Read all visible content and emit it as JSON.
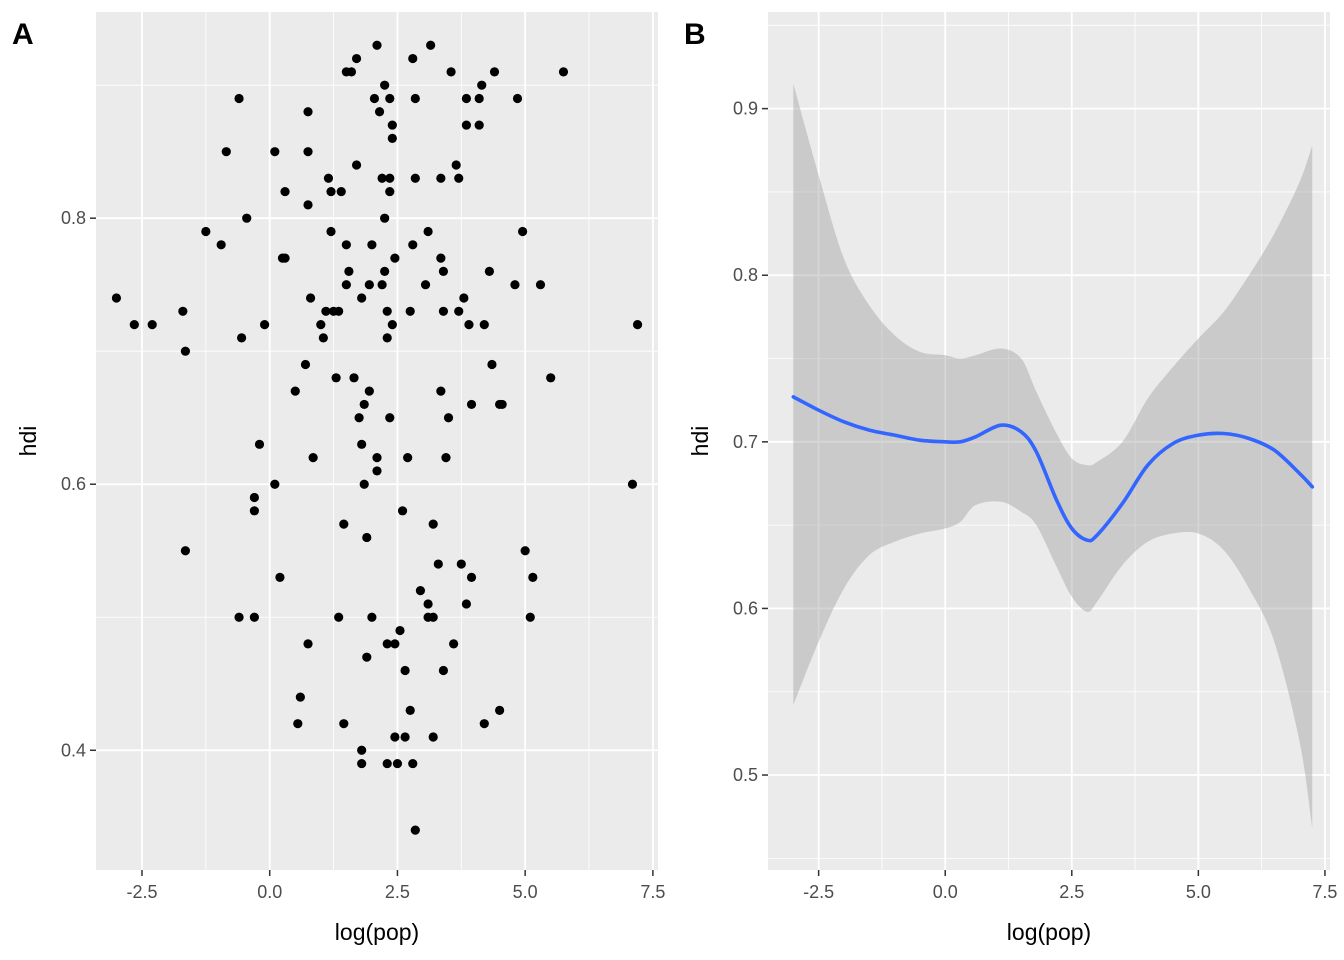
{
  "chart_data": [
    {
      "type": "scatter",
      "panel_tag": "A",
      "xlabel": "log(pop)",
      "ylabel": "hdi",
      "xlim": [
        -3.4,
        7.6
      ],
      "ylim": [
        0.31,
        0.955
      ],
      "x_ticks": [
        -2.5,
        0,
        2.5,
        5,
        7.5
      ],
      "x_tick_labels": [
        "-2.5",
        "0.0",
        "2.5",
        "5.0",
        "7.5"
      ],
      "y_ticks": [
        0.4,
        0.6,
        0.8
      ],
      "y_tick_labels": [
        "0.4",
        "0.6",
        "0.8"
      ],
      "grid": true,
      "background": "#ebebeb",
      "point_color": "#000000",
      "points": [
        [
          -3.0,
          0.74
        ],
        [
          -2.65,
          0.72
        ],
        [
          -2.3,
          0.72
        ],
        [
          -1.7,
          0.73
        ],
        [
          -1.65,
          0.7
        ],
        [
          -1.65,
          0.55
        ],
        [
          -1.25,
          0.79
        ],
        [
          -0.95,
          0.78
        ],
        [
          -0.85,
          0.85
        ],
        [
          -0.6,
          0.89
        ],
        [
          -0.55,
          0.71
        ],
        [
          -0.45,
          0.8
        ],
        [
          -0.6,
          0.5
        ],
        [
          -0.3,
          0.5
        ],
        [
          -0.3,
          0.58
        ],
        [
          -0.3,
          0.59
        ],
        [
          -0.2,
          0.63
        ],
        [
          -0.1,
          0.72
        ],
        [
          0.1,
          0.85
        ],
        [
          0.1,
          0.6
        ],
        [
          0.2,
          0.53
        ],
        [
          0.25,
          0.77
        ],
        [
          0.3,
          0.77
        ],
        [
          0.3,
          0.82
        ],
        [
          0.5,
          0.67
        ],
        [
          0.55,
          0.42
        ],
        [
          0.6,
          0.44
        ],
        [
          0.7,
          0.69
        ],
        [
          0.75,
          0.88
        ],
        [
          0.75,
          0.85
        ],
        [
          0.75,
          0.81
        ],
        [
          0.8,
          0.74
        ],
        [
          0.85,
          0.62
        ],
        [
          0.75,
          0.48
        ],
        [
          1.0,
          0.72
        ],
        [
          1.05,
          0.71
        ],
        [
          1.1,
          0.73
        ],
        [
          1.15,
          0.83
        ],
        [
          1.2,
          0.82
        ],
        [
          1.2,
          0.79
        ],
        [
          1.25,
          0.73
        ],
        [
          1.3,
          0.68
        ],
        [
          1.35,
          0.73
        ],
        [
          1.4,
          0.82
        ],
        [
          1.35,
          0.5
        ],
        [
          1.45,
          0.42
        ],
        [
          1.45,
          0.57
        ],
        [
          1.5,
          0.91
        ],
        [
          1.5,
          0.78
        ],
        [
          1.5,
          0.75
        ],
        [
          1.55,
          0.76
        ],
        [
          1.6,
          0.91
        ],
        [
          1.65,
          0.68
        ],
        [
          1.7,
          0.84
        ],
        [
          1.7,
          0.92
        ],
        [
          1.75,
          0.65
        ],
        [
          1.8,
          0.63
        ],
        [
          1.8,
          0.74
        ],
        [
          1.85,
          0.66
        ],
        [
          1.85,
          0.6
        ],
        [
          1.8,
          0.39
        ],
        [
          1.8,
          0.4
        ],
        [
          1.9,
          0.56
        ],
        [
          1.9,
          0.47
        ],
        [
          1.95,
          0.67
        ],
        [
          1.95,
          0.75
        ],
        [
          2.0,
          0.78
        ],
        [
          2.0,
          0.5
        ],
        [
          2.05,
          0.89
        ],
        [
          2.1,
          0.93
        ],
        [
          2.1,
          0.62
        ],
        [
          2.1,
          0.61
        ],
        [
          2.15,
          0.88
        ],
        [
          2.2,
          0.83
        ],
        [
          2.2,
          0.75
        ],
        [
          2.25,
          0.8
        ],
        [
          2.25,
          0.76
        ],
        [
          2.25,
          0.9
        ],
        [
          2.3,
          0.73
        ],
        [
          2.3,
          0.71
        ],
        [
          2.3,
          0.48
        ],
        [
          2.3,
          0.39
        ],
        [
          2.35,
          0.89
        ],
        [
          2.35,
          0.65
        ],
        [
          2.35,
          0.83
        ],
        [
          2.35,
          0.82
        ],
        [
          2.4,
          0.87
        ],
        [
          2.4,
          0.72
        ],
        [
          2.4,
          0.86
        ],
        [
          2.45,
          0.77
        ],
        [
          2.45,
          0.48
        ],
        [
          2.45,
          0.41
        ],
        [
          2.5,
          0.39
        ],
        [
          2.55,
          0.49
        ],
        [
          2.6,
          0.58
        ],
        [
          2.65,
          0.46
        ],
        [
          2.65,
          0.41
        ],
        [
          2.7,
          0.62
        ],
        [
          2.75,
          0.73
        ],
        [
          2.75,
          0.43
        ],
        [
          2.8,
          0.78
        ],
        [
          2.8,
          0.39
        ],
        [
          2.8,
          0.92
        ],
        [
          2.85,
          0.83
        ],
        [
          2.85,
          0.34
        ],
        [
          2.85,
          0.89
        ],
        [
          2.95,
          0.52
        ],
        [
          3.05,
          0.75
        ],
        [
          3.1,
          0.79
        ],
        [
          3.1,
          0.51
        ],
        [
          3.1,
          0.5
        ],
        [
          3.15,
          0.93
        ],
        [
          3.2,
          0.57
        ],
        [
          3.2,
          0.5
        ],
        [
          3.2,
          0.41
        ],
        [
          3.3,
          0.54
        ],
        [
          3.35,
          0.83
        ],
        [
          3.35,
          0.67
        ],
        [
          3.35,
          0.77
        ],
        [
          3.4,
          0.76
        ],
        [
          3.4,
          0.73
        ],
        [
          3.4,
          0.46
        ],
        [
          3.45,
          0.62
        ],
        [
          3.5,
          0.65
        ],
        [
          3.55,
          0.91
        ],
        [
          3.6,
          0.48
        ],
        [
          3.65,
          0.84
        ],
        [
          3.7,
          0.83
        ],
        [
          3.7,
          0.73
        ],
        [
          3.75,
          0.54
        ],
        [
          3.8,
          0.74
        ],
        [
          3.85,
          0.51
        ],
        [
          3.85,
          0.87
        ],
        [
          3.85,
          0.89
        ],
        [
          3.9,
          0.72
        ],
        [
          3.95,
          0.53
        ],
        [
          3.95,
          0.66
        ],
        [
          4.1,
          0.87
        ],
        [
          4.1,
          0.89
        ],
        [
          4.15,
          0.9
        ],
        [
          4.2,
          0.72
        ],
        [
          4.2,
          0.42
        ],
        [
          4.3,
          0.76
        ],
        [
          4.35,
          0.69
        ],
        [
          4.4,
          0.91
        ],
        [
          4.5,
          0.66
        ],
        [
          4.5,
          0.43
        ],
        [
          4.55,
          0.66
        ],
        [
          4.8,
          0.75
        ],
        [
          4.85,
          0.89
        ],
        [
          4.95,
          0.79
        ],
        [
          5.0,
          0.55
        ],
        [
          5.1,
          0.5
        ],
        [
          5.15,
          0.53
        ],
        [
          5.3,
          0.75
        ],
        [
          5.5,
          0.68
        ],
        [
          5.75,
          0.91
        ],
        [
          7.1,
          0.6
        ],
        [
          7.2,
          0.72
        ]
      ]
    },
    {
      "type": "line",
      "panel_tag": "B",
      "xlabel": "log(pop)",
      "ylabel": "hdi",
      "xlim": [
        -3.5,
        7.6
      ],
      "ylim": [
        0.443,
        0.958
      ],
      "x_ticks": [
        -2.5,
        0,
        2.5,
        5,
        7.5
      ],
      "x_tick_labels": [
        "-2.5",
        "0.0",
        "2.5",
        "5.0",
        "7.5"
      ],
      "y_ticks": [
        0.5,
        0.6,
        0.7,
        0.8,
        0.9
      ],
      "y_tick_labels": [
        "0.5",
        "0.6",
        "0.7",
        "0.8",
        "0.9"
      ],
      "grid": true,
      "background": "#ebebeb",
      "line_color": "#3366ff",
      "band_color": "#999999",
      "series": [
        {
          "x": [
            -3.0,
            -2.5,
            -2.0,
            -1.5,
            -1.0,
            -0.5,
            0.0,
            0.3,
            0.6,
            1.1,
            1.5,
            1.8,
            2.2,
            2.5,
            2.8,
            3.0,
            3.5,
            4.0,
            4.5,
            5.0,
            5.5,
            6.0,
            6.5,
            7.0,
            7.25
          ],
          "y": [
            0.727,
            0.719,
            0.712,
            0.707,
            0.704,
            0.701,
            0.7,
            0.7,
            0.703,
            0.71,
            0.706,
            0.694,
            0.665,
            0.648,
            0.641,
            0.644,
            0.663,
            0.686,
            0.699,
            0.704,
            0.705,
            0.702,
            0.695,
            0.681,
            0.673
          ],
          "lower": [
            0.542,
            0.58,
            0.612,
            0.632,
            0.64,
            0.645,
            0.648,
            0.652,
            0.662,
            0.664,
            0.658,
            0.65,
            0.625,
            0.607,
            0.598,
            0.604,
            0.626,
            0.64,
            0.645,
            0.645,
            0.635,
            0.612,
            0.58,
            0.52,
            0.468
          ],
          "upper": [
            0.915,
            0.86,
            0.81,
            0.782,
            0.764,
            0.754,
            0.752,
            0.75,
            0.752,
            0.756,
            0.75,
            0.73,
            0.705,
            0.69,
            0.686,
            0.688,
            0.7,
            0.726,
            0.745,
            0.762,
            0.778,
            0.8,
            0.825,
            0.856,
            0.878
          ]
        }
      ]
    }
  ]
}
